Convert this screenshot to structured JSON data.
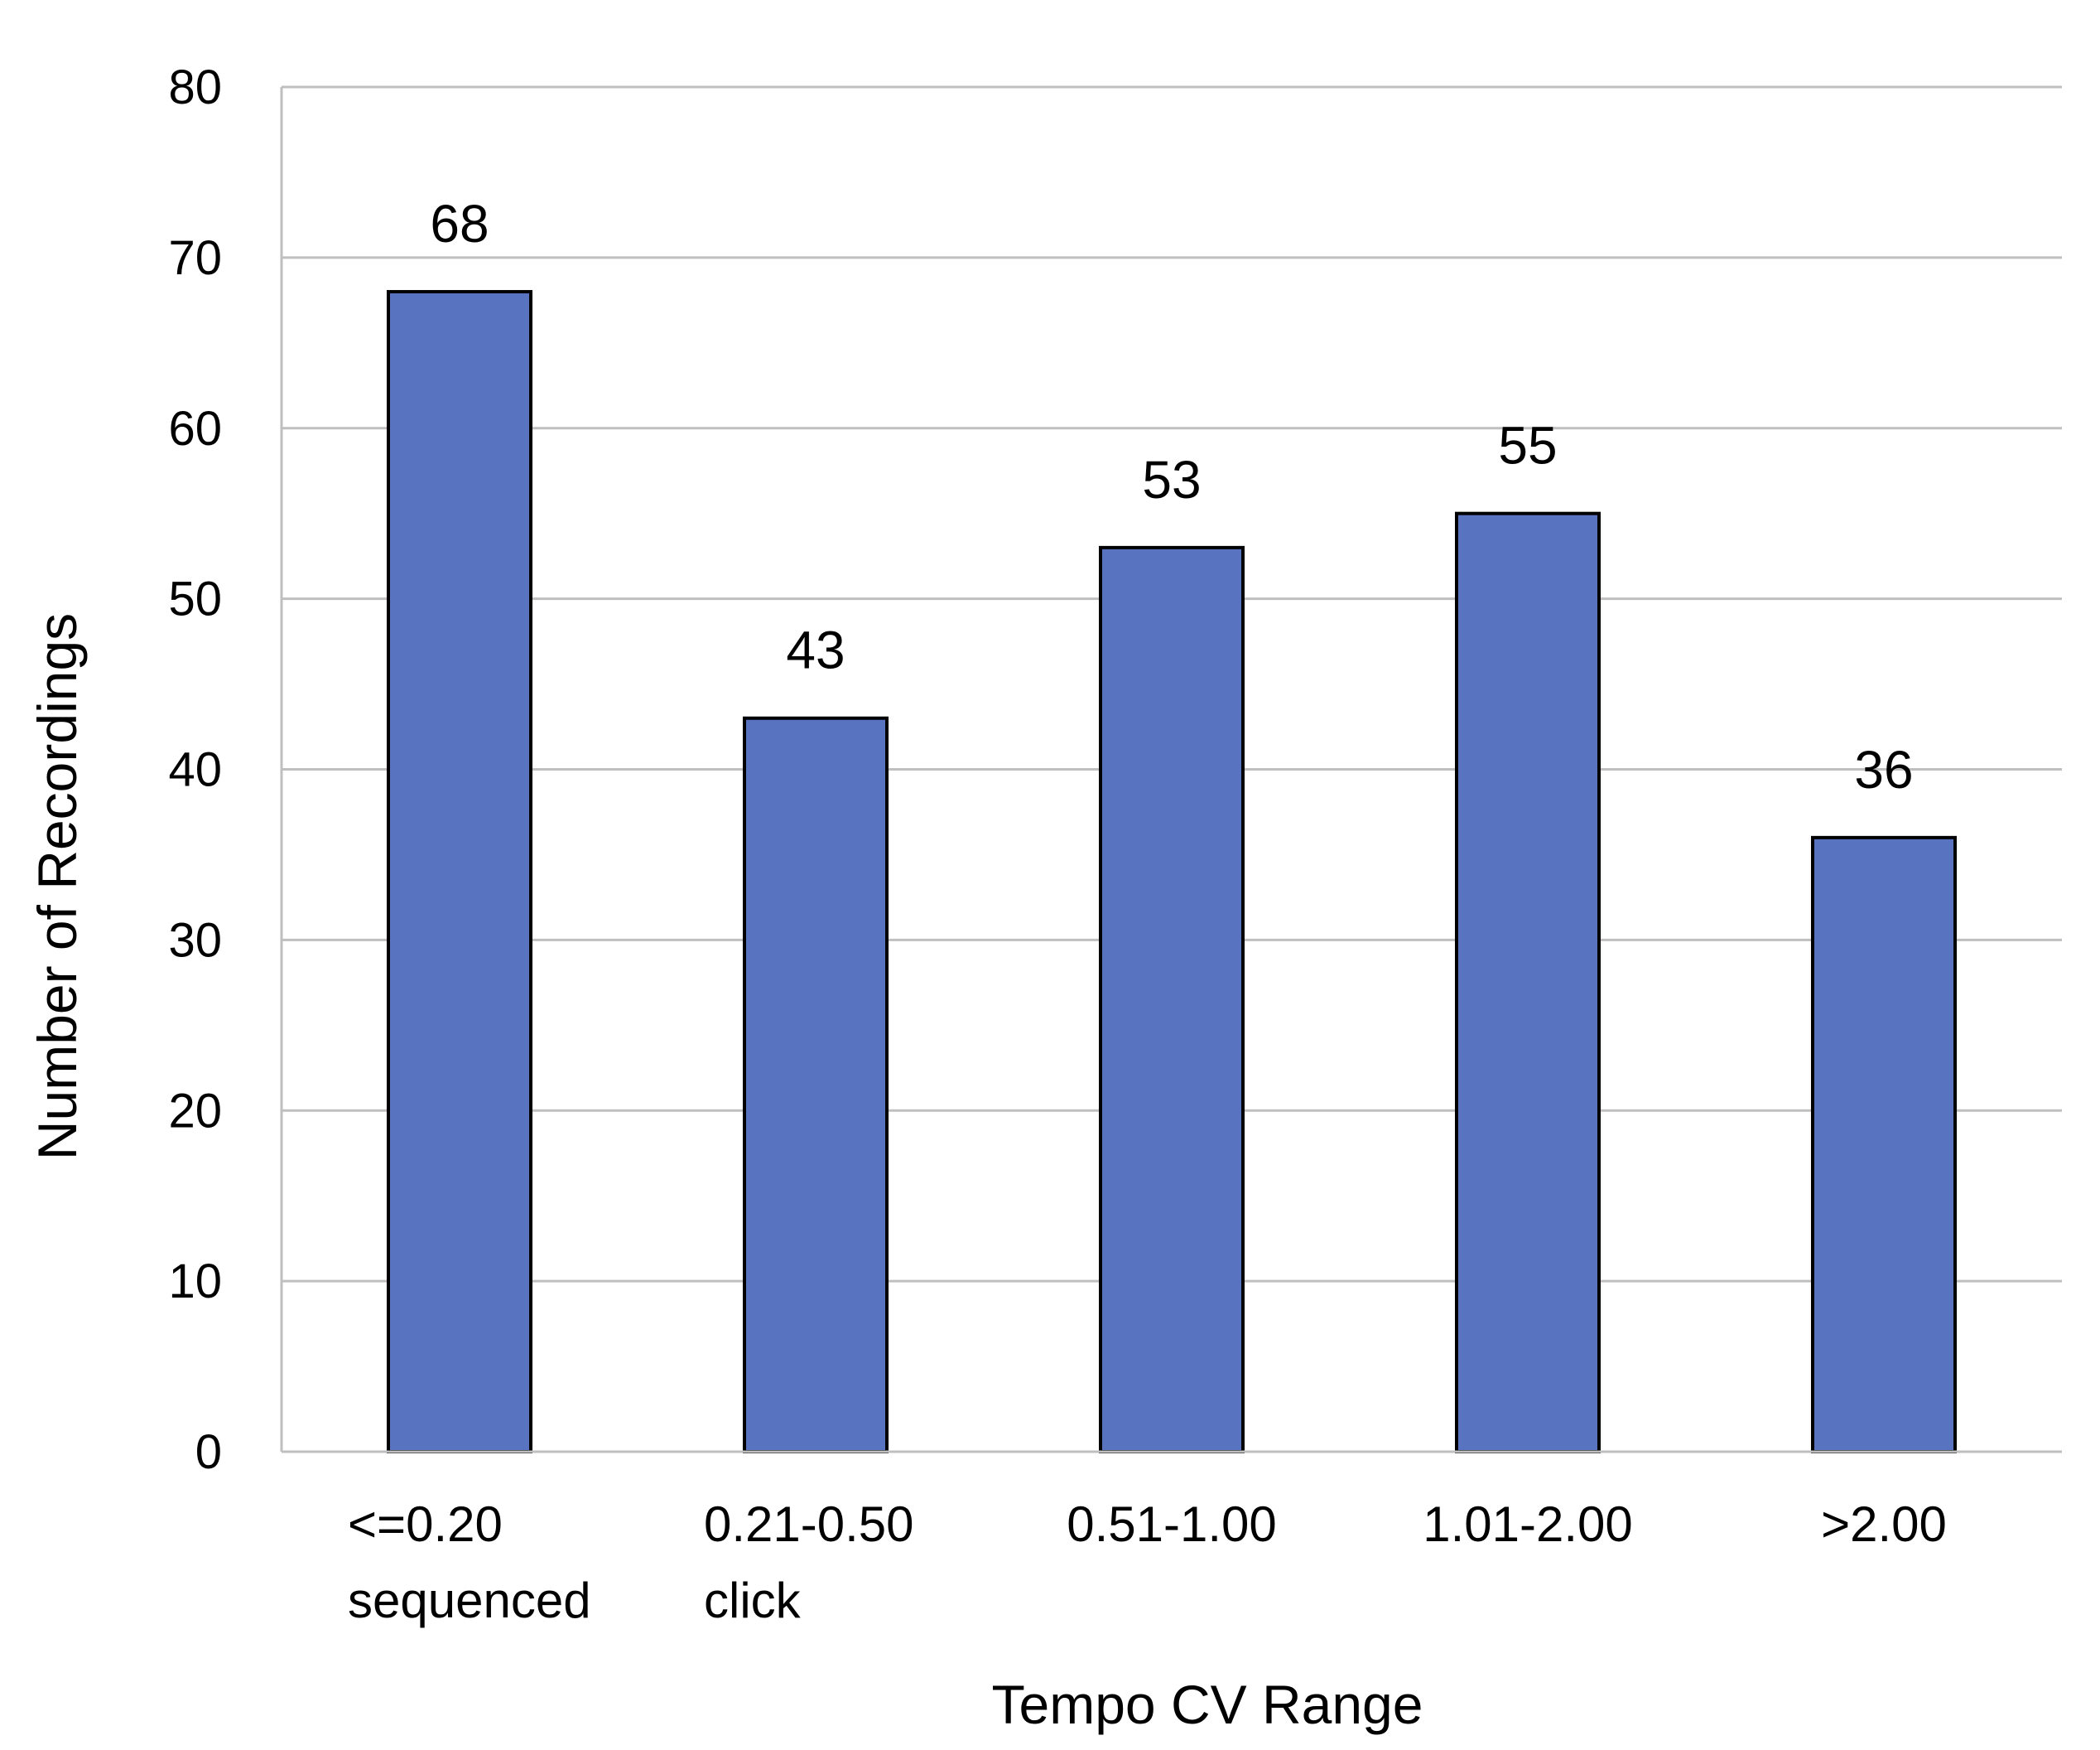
{
  "chart_data": {
    "type": "bar",
    "title": "",
    "xlabel": "Tempo CV Range",
    "ylabel": "Number of Recordings",
    "categories": [
      [
        "<=0.20",
        "sequenced"
      ],
      [
        "0.21-0.50",
        "click"
      ],
      [
        "0.51-1.00"
      ],
      [
        "1.01-2.00"
      ],
      [
        ">2.00"
      ]
    ],
    "values": [
      68,
      43,
      53,
      55,
      36
    ],
    "ylim": [
      0,
      80
    ],
    "yticks": [
      0,
      10,
      20,
      30,
      40,
      50,
      60,
      70,
      80
    ],
    "grid": true,
    "legend": "none",
    "bar_color": "#5874C1",
    "bar_edge_color": "#000000",
    "grid_color": "#BFBFBF"
  }
}
